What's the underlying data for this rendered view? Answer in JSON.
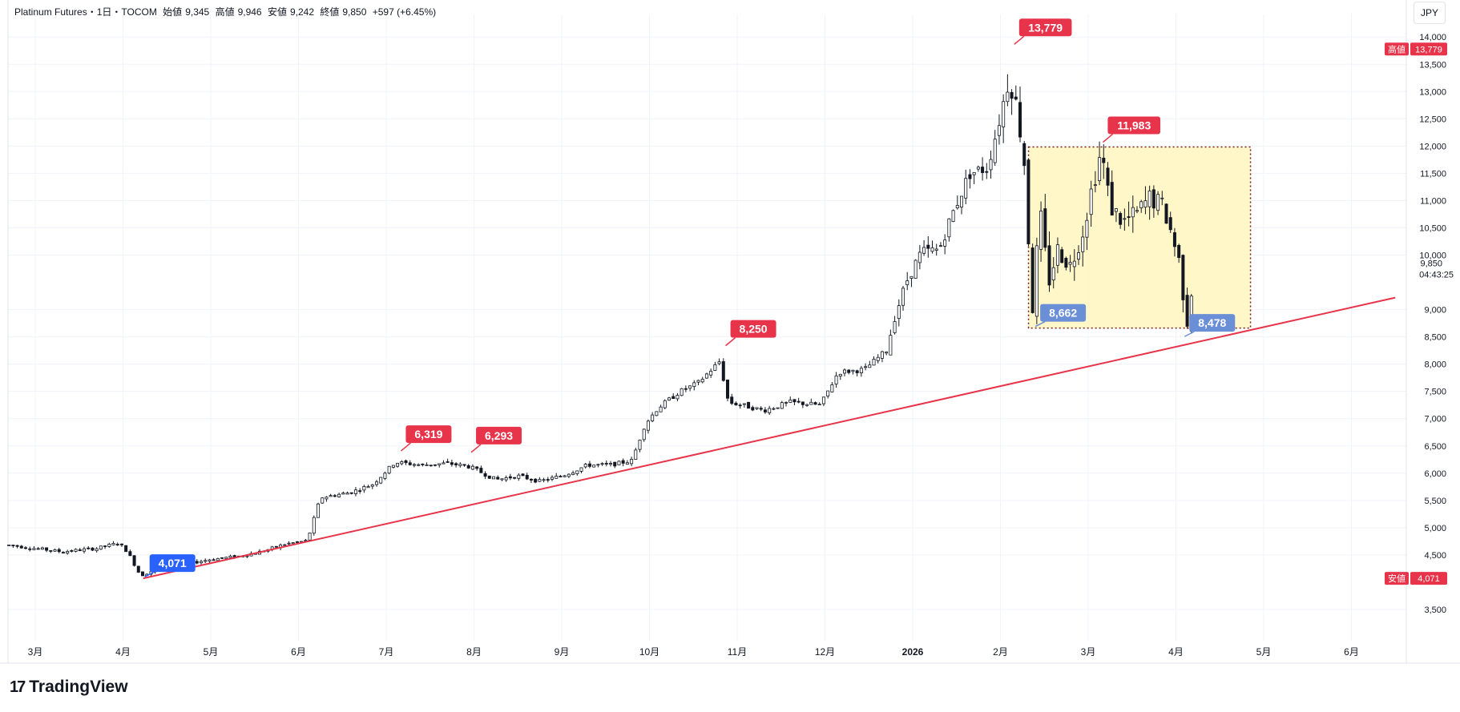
{
  "header": {
    "symbol": "Platinum Futures・1日・TOCOM",
    "open_label": "始値",
    "open": "9,345",
    "high_label": "高値",
    "high": "9,946",
    "low_label": "安値",
    "low": "9,242",
    "close_label": "終値",
    "close": "9,850",
    "change": "+597 (+6.45%)"
  },
  "currency": "JPY",
  "brand": "TradingView",
  "colors": {
    "up_candle": "#ffffff",
    "down_candle": "#131722",
    "wick": "#131722",
    "trendline": "#e8344a",
    "rect_fill": "#fff6c2",
    "rect_border": "#7a1c1c",
    "red_label": "#e8344a",
    "blue_label": "#2962ff",
    "pale_blue_label": "#6b8fd6",
    "grid": "#f0f3fa"
  },
  "chart_data": {
    "type": "candlestick",
    "title": "Platinum Futures・1日・TOCOM",
    "ylim": [
      3000,
      14400
    ],
    "y_ticks": [
      3500,
      4500,
      5000,
      5500,
      6000,
      6500,
      7000,
      7500,
      8000,
      8500,
      9000,
      10000,
      10500,
      11000,
      11500,
      12000,
      12500,
      13000,
      13500,
      14000
    ],
    "y_tick_labels": [
      "3,500",
      "4,500",
      "5,000",
      "5,500",
      "6,000",
      "6,500",
      "7,000",
      "7,500",
      "8,000",
      "8,500",
      "9,000",
      "10,000",
      "10,500",
      "11,000",
      "11,500",
      "12,000",
      "12,500",
      "13,000",
      "13,500",
      "14,000"
    ],
    "x_labels": [
      {
        "label": "3月",
        "t": 0.0
      },
      {
        "label": "4月",
        "t": 1.0
      },
      {
        "label": "5月",
        "t": 2.0
      },
      {
        "label": "6月",
        "t": 3.0
      },
      {
        "label": "7月",
        "t": 4.0
      },
      {
        "label": "8月",
        "t": 5.0
      },
      {
        "label": "9月",
        "t": 6.0
      },
      {
        "label": "10月",
        "t": 7.0
      },
      {
        "label": "11月",
        "t": 8.0
      },
      {
        "label": "12月",
        "t": 9.0
      },
      {
        "label": "2026",
        "t": 10.0,
        "bold": true
      },
      {
        "label": "2月",
        "t": 11.0
      },
      {
        "label": "3月",
        "t": 12.0
      },
      {
        "label": "4月",
        "t": 13.0
      },
      {
        "label": "5月",
        "t": 14.0
      },
      {
        "label": "6月",
        "t": 15.0
      }
    ],
    "price_path": [
      [
        -0.3,
        4680
      ],
      [
        0.3,
        4560
      ],
      [
        0.7,
        4620
      ],
      [
        0.95,
        4720
      ],
      [
        1.05,
        4560
      ],
      [
        1.2,
        4120
      ],
      [
        1.4,
        4250
      ],
      [
        1.7,
        4330
      ],
      [
        2.0,
        4420
      ],
      [
        2.3,
        4470
      ],
      [
        2.6,
        4570
      ],
      [
        2.85,
        4700
      ],
      [
        3.1,
        4760
      ],
      [
        3.25,
        5550
      ],
      [
        3.6,
        5650
      ],
      [
        3.85,
        5800
      ],
      [
        4.1,
        6200
      ],
      [
        4.4,
        6150
      ],
      [
        4.7,
        6180
      ],
      [
        4.95,
        6120
      ],
      [
        5.25,
        5880
      ],
      [
        5.5,
        5950
      ],
      [
        5.75,
        5850
      ],
      [
        6.0,
        5950
      ],
      [
        6.3,
        6150
      ],
      [
        6.55,
        6150
      ],
      [
        6.8,
        6230
      ],
      [
        6.95,
        6900
      ],
      [
        7.1,
        7200
      ],
      [
        7.35,
        7500
      ],
      [
        7.55,
        7650
      ],
      [
        7.8,
        8050
      ],
      [
        7.9,
        7300
      ],
      [
        8.05,
        7250
      ],
      [
        8.3,
        7150
      ],
      [
        8.6,
        7300
      ],
      [
        8.95,
        7250
      ],
      [
        9.15,
        7850
      ],
      [
        9.45,
        7900
      ],
      [
        9.7,
        8250
      ],
      [
        9.8,
        8900
      ],
      [
        9.95,
        9600
      ],
      [
        10.1,
        10050
      ],
      [
        10.3,
        10100
      ],
      [
        10.45,
        10750
      ],
      [
        10.65,
        11500
      ],
      [
        10.85,
        11600
      ],
      [
        11.0,
        12550
      ],
      [
        11.1,
        13300
      ],
      [
        11.2,
        12600
      ],
      [
        11.28,
        11600
      ],
      [
        11.36,
        8900
      ],
      [
        11.45,
        10800
      ],
      [
        11.55,
        9500
      ],
      [
        11.65,
        10100
      ],
      [
        11.8,
        9800
      ],
      [
        11.95,
        10500
      ],
      [
        12.05,
        11300
      ],
      [
        12.15,
        11900
      ],
      [
        12.25,
        10900
      ],
      [
        12.4,
        10600
      ],
      [
        12.55,
        10750
      ],
      [
        12.7,
        11050
      ],
      [
        12.85,
        10900
      ],
      [
        12.95,
        10400
      ],
      [
        13.05,
        9800
      ],
      [
        13.12,
        8700
      ],
      [
        13.22,
        9850
      ]
    ],
    "current_price": 9850,
    "current_price_label": "9,850",
    "countdown": "04:43:25",
    "axis_badges": [
      {
        "tag": "高値",
        "value_label": "13,779",
        "value": 13779
      },
      {
        "tag": "安値",
        "value_label": "4,071",
        "value": 4071
      }
    ],
    "annotations": [
      {
        "label": "13,779",
        "t": 11.14,
        "value": 13779,
        "style": "red"
      },
      {
        "label": "11,983",
        "t": 12.15,
        "value": 11983,
        "style": "red"
      },
      {
        "label": "8,250",
        "t": 7.85,
        "value": 8250,
        "style": "red"
      },
      {
        "label": "6,319",
        "t": 4.15,
        "value": 6319,
        "style": "red"
      },
      {
        "label": "6,293",
        "t": 4.95,
        "value": 6293,
        "style": "red"
      },
      {
        "label": "4,071",
        "t": 1.23,
        "value": 4071,
        "style": "blue"
      },
      {
        "label": "8,662",
        "t": 11.38,
        "value": 8662,
        "style": "paleblue"
      },
      {
        "label": "8,478",
        "t": 13.08,
        "value": 8478,
        "style": "paleblue"
      }
    ],
    "trendline": {
      "start": [
        1.23,
        4071
      ],
      "end": [
        15.5,
        9220
      ]
    },
    "range_box": {
      "t_start": 11.32,
      "t_end": 13.85,
      "top": 11983,
      "bottom": 8662
    }
  }
}
